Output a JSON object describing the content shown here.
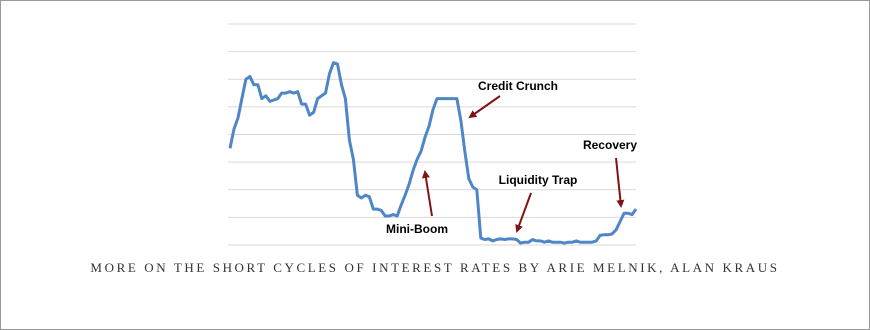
{
  "chart_data": {
    "type": "line",
    "color": "#4f86c6",
    "values": [
      3.5,
      4.2,
      4.6,
      5.3,
      6.0,
      6.1,
      5.8,
      5.8,
      5.3,
      5.4,
      5.2,
      5.25,
      5.3,
      5.5,
      5.5,
      5.55,
      5.5,
      5.55,
      5.1,
      5.1,
      4.7,
      4.8,
      5.3,
      5.4,
      5.5,
      6.2,
      6.6,
      6.55,
      5.8,
      5.3,
      3.8,
      3.1,
      1.8,
      1.7,
      1.8,
      1.75,
      1.3,
      1.3,
      1.25,
      1.05,
      1.05,
      1.1,
      1.05,
      1.45,
      1.8,
      2.2,
      2.7,
      3.1,
      3.4,
      3.9,
      4.3,
      4.9,
      5.3,
      5.3,
      5.3,
      5.3,
      5.3,
      5.3,
      4.5,
      3.4,
      2.4,
      2.1,
      2.0,
      0.25,
      0.2,
      0.22,
      0.15,
      0.2,
      0.22,
      0.2,
      0.22,
      0.22,
      0.2,
      0.07,
      0.1,
      0.1,
      0.2,
      0.15,
      0.15,
      0.1,
      0.15,
      0.1,
      0.1,
      0.1,
      0.07,
      0.1,
      0.1,
      0.15,
      0.1,
      0.1,
      0.1,
      0.1,
      0.15,
      0.35,
      0.37,
      0.37,
      0.4,
      0.55,
      0.85,
      1.15,
      1.15,
      1.1,
      1.3
    ],
    "ylim": [
      0,
      8
    ],
    "yticks": [
      0,
      1,
      2,
      3,
      4,
      5,
      6,
      7,
      8
    ],
    "grid": true,
    "annotations": [
      "Credit Crunch",
      "Mini-Boom",
      "Liquidity Trap",
      "Recovery"
    ]
  },
  "caption": "MORE ON THE SHORT CYCLES OF INTEREST RATES BY ARIE MELNIK, ALAN KRAUS"
}
